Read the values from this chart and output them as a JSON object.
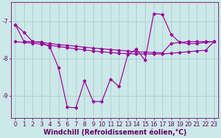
{
  "bg_color": "#cce8e8",
  "line_color": "#990099",
  "xlabel": "Windchill (Refroidissement éolien,°C)",
  "xlabel_color": "#660066",
  "xlabel_fontsize": 7,
  "tick_color": "#660066",
  "tick_fontsize": 6,
  "grid_color": "#aacccc",
  "xlim": [
    -0.5,
    23.5
  ],
  "ylim": [
    -9.6,
    -6.5
  ],
  "yticks": [
    -9,
    -8,
    -7
  ],
  "xticks": [
    0,
    1,
    2,
    3,
    4,
    5,
    6,
    7,
    8,
    9,
    10,
    11,
    12,
    13,
    14,
    15,
    16,
    17,
    18,
    19,
    20,
    21,
    22,
    23
  ],
  "line1_x": [
    0,
    1,
    2,
    3,
    4,
    5,
    6,
    7,
    8,
    9,
    10,
    11,
    12,
    13,
    14,
    15,
    16,
    17,
    18,
    19,
    20,
    21,
    22,
    23
  ],
  "line1_y": [
    -7.1,
    -7.3,
    -7.55,
    -7.57,
    -7.6,
    -7.63,
    -7.65,
    -7.67,
    -7.7,
    -7.72,
    -7.74,
    -7.76,
    -7.78,
    -7.8,
    -7.82,
    -7.83,
    -7.84,
    -7.85,
    -7.6,
    -7.57,
    -7.55,
    -7.55,
    -7.55,
    -7.55
  ],
  "line2_x": [
    0,
    1,
    2,
    3,
    4,
    5,
    6,
    7,
    8,
    9,
    10,
    11,
    12,
    13,
    14,
    15,
    16,
    17,
    18,
    19,
    20,
    21,
    22,
    23
  ],
  "line2_y": [
    -7.55,
    -7.57,
    -7.59,
    -7.62,
    -7.65,
    -7.68,
    -7.71,
    -7.74,
    -7.77,
    -7.8,
    -7.82,
    -7.84,
    -7.86,
    -7.87,
    -7.88,
    -7.88,
    -7.88,
    -7.88,
    -7.86,
    -7.84,
    -7.82,
    -7.8,
    -7.78,
    -7.55
  ],
  "line3_x": [
    0,
    1,
    2,
    3,
    4,
    5,
    6,
    7,
    8,
    9,
    10,
    11,
    12,
    13,
    14,
    15,
    16,
    17,
    18,
    19,
    20,
    21,
    22,
    23
  ],
  "line3_y": [
    -7.1,
    -7.55,
    -7.55,
    -7.56,
    -7.7,
    -8.25,
    -9.3,
    -9.32,
    -8.6,
    -9.15,
    -9.15,
    -8.55,
    -8.75,
    -7.9,
    -7.75,
    -8.05,
    -6.8,
    -6.82,
    -7.35,
    -7.57,
    -7.6,
    -7.6,
    -7.57,
    -7.55
  ]
}
